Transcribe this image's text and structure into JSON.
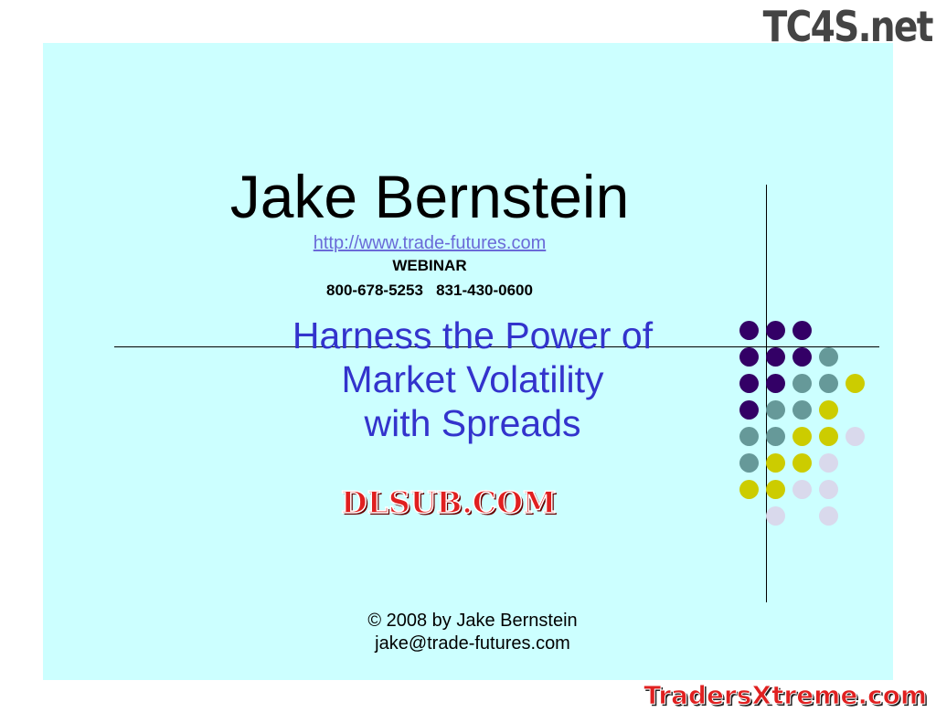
{
  "slide": {
    "presenter": "Jake Bernstein",
    "url": "http://www.trade-futures.com",
    "event": "WEBINAR",
    "phones": "800-678-5253   831-430-0600",
    "subtitle_lines": [
      "Harness the Power of",
      "Market Volatility",
      "with Spreads"
    ],
    "copyright": "© 2008 by Jake Bernstein",
    "email": "jake@trade-futures.com"
  },
  "dot_colors": {
    "P": "#330066",
    "T": "#669999",
    "Y": "#cccc00",
    "L": "#d9d9ec"
  },
  "dot_grid": [
    "PPP__",
    "PPPT_",
    "PPTTY",
    "PTTY_",
    "TTYYL",
    "TYYL_",
    "YYLL_",
    "_L_L_"
  ],
  "watermarks": {
    "top": "TC4S.net",
    "middle": "DLSUB.COM",
    "bottom": "TradersXtreme.com"
  }
}
